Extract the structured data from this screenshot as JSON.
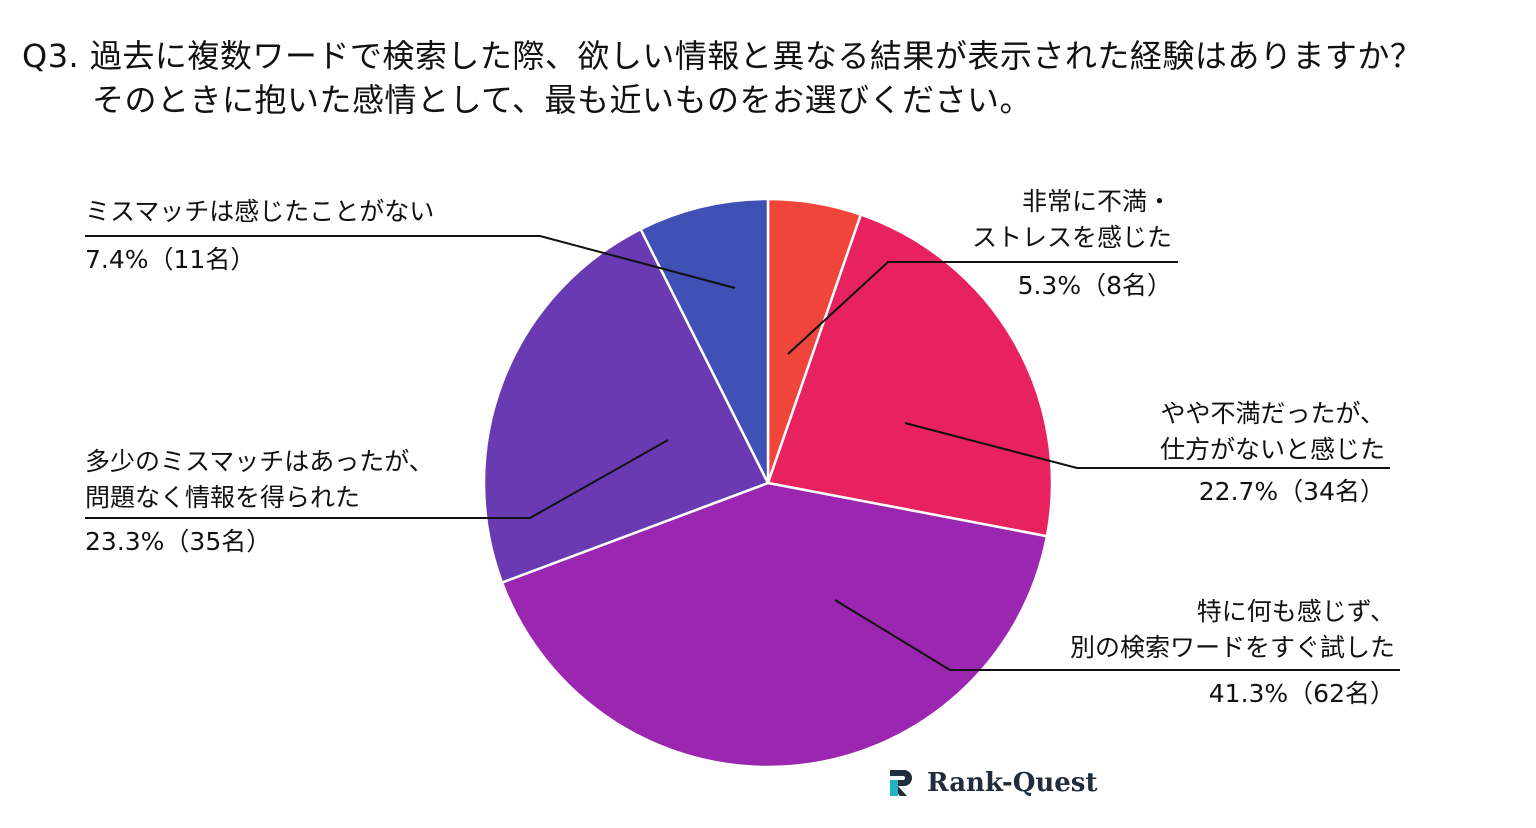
{
  "question": {
    "line1": "Q3. 過去に複数ワードで検索した際、欲しい情報と異なる結果が表示された経験はありますか？",
    "line2": "そのときに抱いた感情として、最も近いものをお選びください。"
  },
  "chart_data": {
    "type": "pie",
    "unit": "%",
    "slices": [
      {
        "label_lines": [
          "非常に不満・",
          "ストレスを感じた"
        ],
        "value": 5.3,
        "count_label": "5.3%（8名）",
        "color": "#f0453a"
      },
      {
        "label_lines": [
          "やや不満だったが、",
          "仕方がないと感じた"
        ],
        "value": 22.7,
        "count_label": "22.7%（34名）",
        "color": "#e8215f"
      },
      {
        "label_lines": [
          "特に何も感じず、",
          "別の検索ワードをすぐ試した"
        ],
        "value": 41.3,
        "count_label": "41.3%（62名）",
        "color": "#9b27b0"
      },
      {
        "label_lines": [
          "多少のミスマッチはあったが、",
          "問題なく情報を得られた"
        ],
        "value": 23.3,
        "count_label": "23.3%（35名）",
        "color": "#6a3ab3"
      },
      {
        "label_lines": [
          "ミスマッチは感じたことがない"
        ],
        "value": 7.4,
        "count_label": "7.4%（11名）",
        "color": "#3f51b5"
      }
    ]
  },
  "logo": {
    "text": "Rank-Quest"
  }
}
